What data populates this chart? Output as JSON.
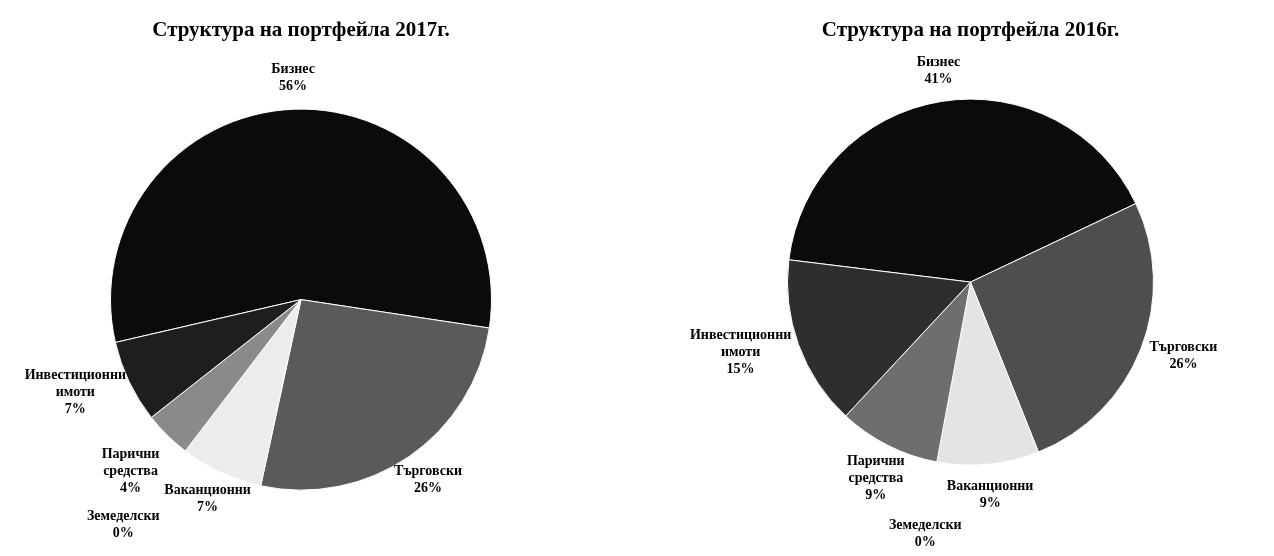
{
  "chart_data": [
    {
      "type": "pie",
      "title": "Структура на портфейла 2017г.",
      "categories": [
        "Бизнес",
        "Търговски",
        "Ваканционни",
        "Земеделски",
        "Парични средства",
        "Инвестиционни имоти"
      ],
      "values": [
        56,
        26,
        7,
        0,
        4,
        7
      ],
      "colors": [
        "#0b0b0b",
        "#5a5a5a",
        "#ececec",
        "#000000",
        "#8a8a8a",
        "#1e1e1e"
      ],
      "value_labels": [
        "56%",
        "26%",
        "7%",
        "0%",
        "4%",
        "7%"
      ]
    },
    {
      "type": "pie",
      "title": "Структура на портфейла 2016г.",
      "categories": [
        "Бизнес",
        "Търговски",
        "Ваканционни",
        "Земеделски",
        "Парични средства",
        "Инвестиционни имоти"
      ],
      "values": [
        41,
        26,
        9,
        0,
        9,
        15
      ],
      "colors": [
        "#0b0b0b",
        "#4e4e4e",
        "#e4e4e4",
        "#000000",
        "#6e6e6e",
        "#2e2e2e"
      ],
      "value_labels": [
        "41%",
        "26%",
        "9%",
        "0%",
        "9%",
        "15%"
      ]
    }
  ]
}
